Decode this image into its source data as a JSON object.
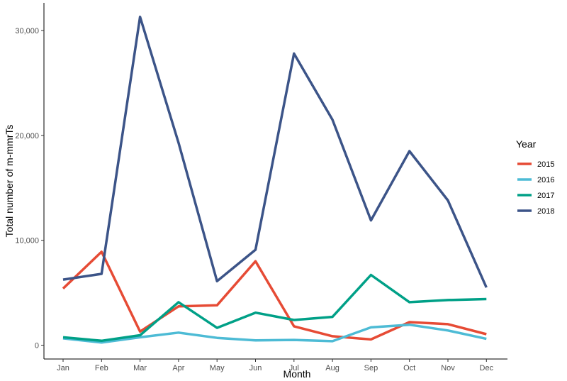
{
  "chart_data": {
    "type": "line",
    "xlabel": "Month",
    "ylabel": "Total number of m-mmrTs",
    "categories": [
      "Jan",
      "Feb",
      "Mar",
      "Apr",
      "May",
      "Jun",
      "Jul",
      "Aug",
      "Sep",
      "Oct",
      "Nov",
      "Dec"
    ],
    "ylim": [
      0,
      32000
    ],
    "yticks": [
      0,
      10000,
      20000,
      30000
    ],
    "ytick_labels": [
      "0",
      "10,000",
      "20,000",
      "30,000"
    ],
    "grid": false,
    "legend": {
      "title": "Year",
      "placement": "right"
    },
    "series": [
      {
        "name": "2015",
        "color": "#e64b35",
        "values": [
          5400,
          8900,
          1300,
          3700,
          3800,
          8000,
          1800,
          850,
          550,
          2200,
          2000,
          1050
        ]
      },
      {
        "name": "2016",
        "color": "#4dbbd5",
        "values": [
          650,
          250,
          750,
          1200,
          700,
          450,
          500,
          380,
          1700,
          1950,
          1400,
          600
        ]
      },
      {
        "name": "2017",
        "color": "#00a087",
        "values": [
          750,
          420,
          950,
          4100,
          1650,
          3100,
          2400,
          2700,
          6700,
          4100,
          4300,
          4400
        ]
      },
      {
        "name": "2018",
        "color": "#3c5488",
        "values": [
          6250,
          6800,
          31300,
          19300,
          6100,
          9100,
          27800,
          21500,
          11900,
          18500,
          13800,
          5500
        ]
      }
    ]
  }
}
